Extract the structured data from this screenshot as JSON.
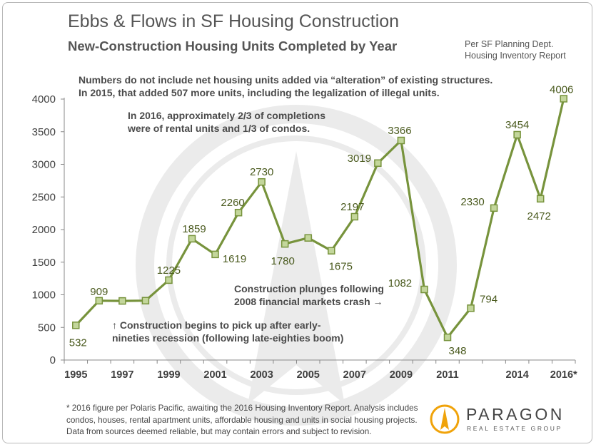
{
  "header": {
    "title": "Ebbs & Flows in SF Housing Construction",
    "subtitle": "New-Construction Housing Units Completed by Year",
    "source_line1": "Per SF Planning Dept.",
    "source_line2": "Housing Inventory Report"
  },
  "notes": {
    "alteration_line1": "Numbers do not include net housing units added via “alteration” of existing structures.",
    "alteration_line2": "In 2015, that added 507 more units, including the legalization of illegal units.",
    "rental_line1": "In 2016, approximately 2/3 of completions",
    "rental_line2": "were of rental units and 1/3 of condos.",
    "plunge_line1": "Construction plunges following",
    "plunge_line2": "2008 financial markets crash →",
    "pickup_line1": "↑ Construction begins to pick up after early-",
    "pickup_line2": "nineties recession (following late-eighties boom)"
  },
  "footer": {
    "line1": "* 2016 figure per Polaris Pacific, awaiting the 2016 Housing Inventory Report. Analysis includes",
    "line2": "condos, houses, rental apartment units, affordable housing and units in social housing projects.",
    "line3": "Data from sources deemed reliable, but may contain errors and subject to revision."
  },
  "logo": {
    "name": "PARAGON",
    "tagline": "REAL ESTATE GROUP",
    "icon": "paragon-logo-icon"
  },
  "colors": {
    "line": "#77933c",
    "marker_fill": "#c3d69b",
    "axis_text": "#404040",
    "label_text": "#4a5a1e",
    "watermark": "#ebebeb"
  },
  "chart_data": {
    "type": "line",
    "title": "New-Construction Housing Units Completed by Year",
    "x": [
      "1995",
      "1996",
      "1997",
      "1998",
      "1999",
      "2000",
      "2001",
      "2002",
      "2003",
      "2004",
      "2005",
      "2006",
      "2007",
      "2008",
      "2009",
      "2010",
      "2011",
      "2012",
      "2013",
      "2014",
      "2015",
      "2016*"
    ],
    "series": [
      {
        "values": [
          532,
          909,
          906,
          910,
          1225,
          1859,
          1619,
          2260,
          2730,
          1780,
          1872,
          1675,
          2197,
          3019,
          3366,
          1082,
          348,
          794,
          2330,
          3454,
          2472,
          4006
        ]
      }
    ],
    "data_labels": [
      {
        "x": "1995",
        "text": "532"
      },
      {
        "x": "1996",
        "text": "909"
      },
      {
        "x": "1999",
        "text": "1225"
      },
      {
        "x": "2000",
        "text": "1859"
      },
      {
        "x": "2001",
        "text": "1619"
      },
      {
        "x": "2002",
        "text": "2260"
      },
      {
        "x": "2003",
        "text": "2730"
      },
      {
        "x": "2004",
        "text": "1780"
      },
      {
        "x": "2006",
        "text": "1675"
      },
      {
        "x": "2007",
        "text": "2197"
      },
      {
        "x": "2008",
        "text": "3019"
      },
      {
        "x": "2009",
        "text": "3366"
      },
      {
        "x": "2010",
        "text": "1082"
      },
      {
        "x": "2011",
        "text": "348"
      },
      {
        "x": "2012",
        "text": "794"
      },
      {
        "x": "2013",
        "text": "2330"
      },
      {
        "x": "2014",
        "text": "3454"
      },
      {
        "x": "2015",
        "text": "2472"
      },
      {
        "x": "2016*",
        "text": "4006"
      }
    ],
    "x_tick_labels": [
      "1995",
      "1997",
      "1999",
      "2001",
      "2003",
      "2005",
      "2007",
      "2009",
      "2011",
      "2014",
      "2016*"
    ],
    "y_ticks": [
      0,
      500,
      1000,
      1500,
      2000,
      2500,
      3000,
      3500,
      4000
    ],
    "ylim": [
      0,
      4000
    ],
    "grid": false,
    "legend": "none"
  }
}
